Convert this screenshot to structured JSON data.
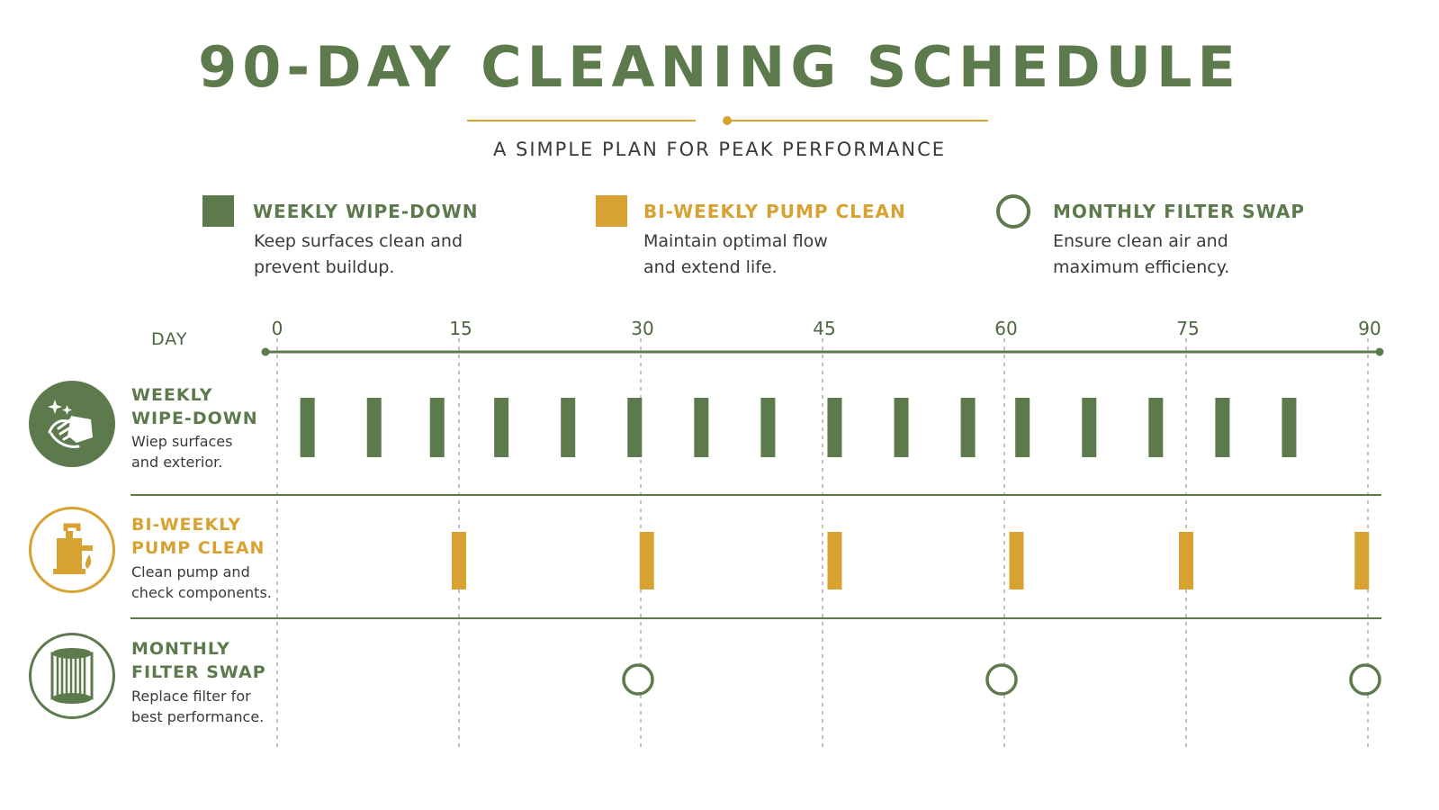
{
  "header": {
    "title": "90-DAY CLEANING SCHEDULE",
    "subtitle": "A SIMPLE PLAN FOR PEAK PERFORMANCE"
  },
  "legend": [
    {
      "title": "WEEKLY WIPE-DOWN",
      "line1": "Keep surfaces clean and",
      "line2": "prevent buildup.",
      "symbol": "square",
      "color": "#5d7a4d"
    },
    {
      "title": "BI-WEEKLY PUMP CLEAN",
      "line1": "Maintain optimal flow",
      "line2": "and extend life.",
      "symbol": "square",
      "color": "#d8a232"
    },
    {
      "title": "MONTHLY FILTER SWAP",
      "line1": "Ensure clean air and",
      "line2": "maximum efficiency.",
      "symbol": "ring",
      "color": "#5d7a4d"
    }
  ],
  "rows": [
    {
      "title1": "WEEKLY",
      "title2": "WIPE-DOWN",
      "desc1": "Wiep surfaces",
      "desc2": "and exterior.",
      "icon": "hand-wiping-icon",
      "color": "#5d7a4d"
    },
    {
      "title1": "BI-WEEKLY",
      "title2": "PUMP CLEAN",
      "desc1": "Clean pump and",
      "desc2": "check components.",
      "icon": "pump-icon",
      "color": "#d8a232"
    },
    {
      "title1": "MONTHLY",
      "title2": "FILTER SWAP",
      "desc1": "Replace filter for",
      "desc2": "best performance.",
      "icon": "filter-icon",
      "color": "#5d7a4d"
    }
  ],
  "colors": {
    "green": "#5d7a4d",
    "orange": "#d8a232",
    "text": "#3a3a3a"
  },
  "chart_data": {
    "type": "timeline",
    "xlabel": "DAY",
    "xlim": [
      0,
      90
    ],
    "ticks": [
      0,
      15,
      30,
      45,
      60,
      75,
      90
    ],
    "grid": "dashed vertical at ticks",
    "series": [
      {
        "name": "WEEKLY WIPE-DOWN",
        "marker": "bar",
        "days": [
          2.5,
          8,
          13.2,
          18.5,
          24,
          29.5,
          35,
          40.5,
          46,
          51.5,
          57,
          61.5,
          67,
          72.5,
          78,
          83.5
        ]
      },
      {
        "name": "BI-WEEKLY PUMP CLEAN",
        "marker": "bar",
        "days": [
          15,
          30.5,
          46,
          61,
          75,
          89.5
        ]
      },
      {
        "name": "MONTHLY FILTER SWAP",
        "marker": "ring",
        "days": [
          30,
          60,
          90
        ]
      }
    ]
  }
}
